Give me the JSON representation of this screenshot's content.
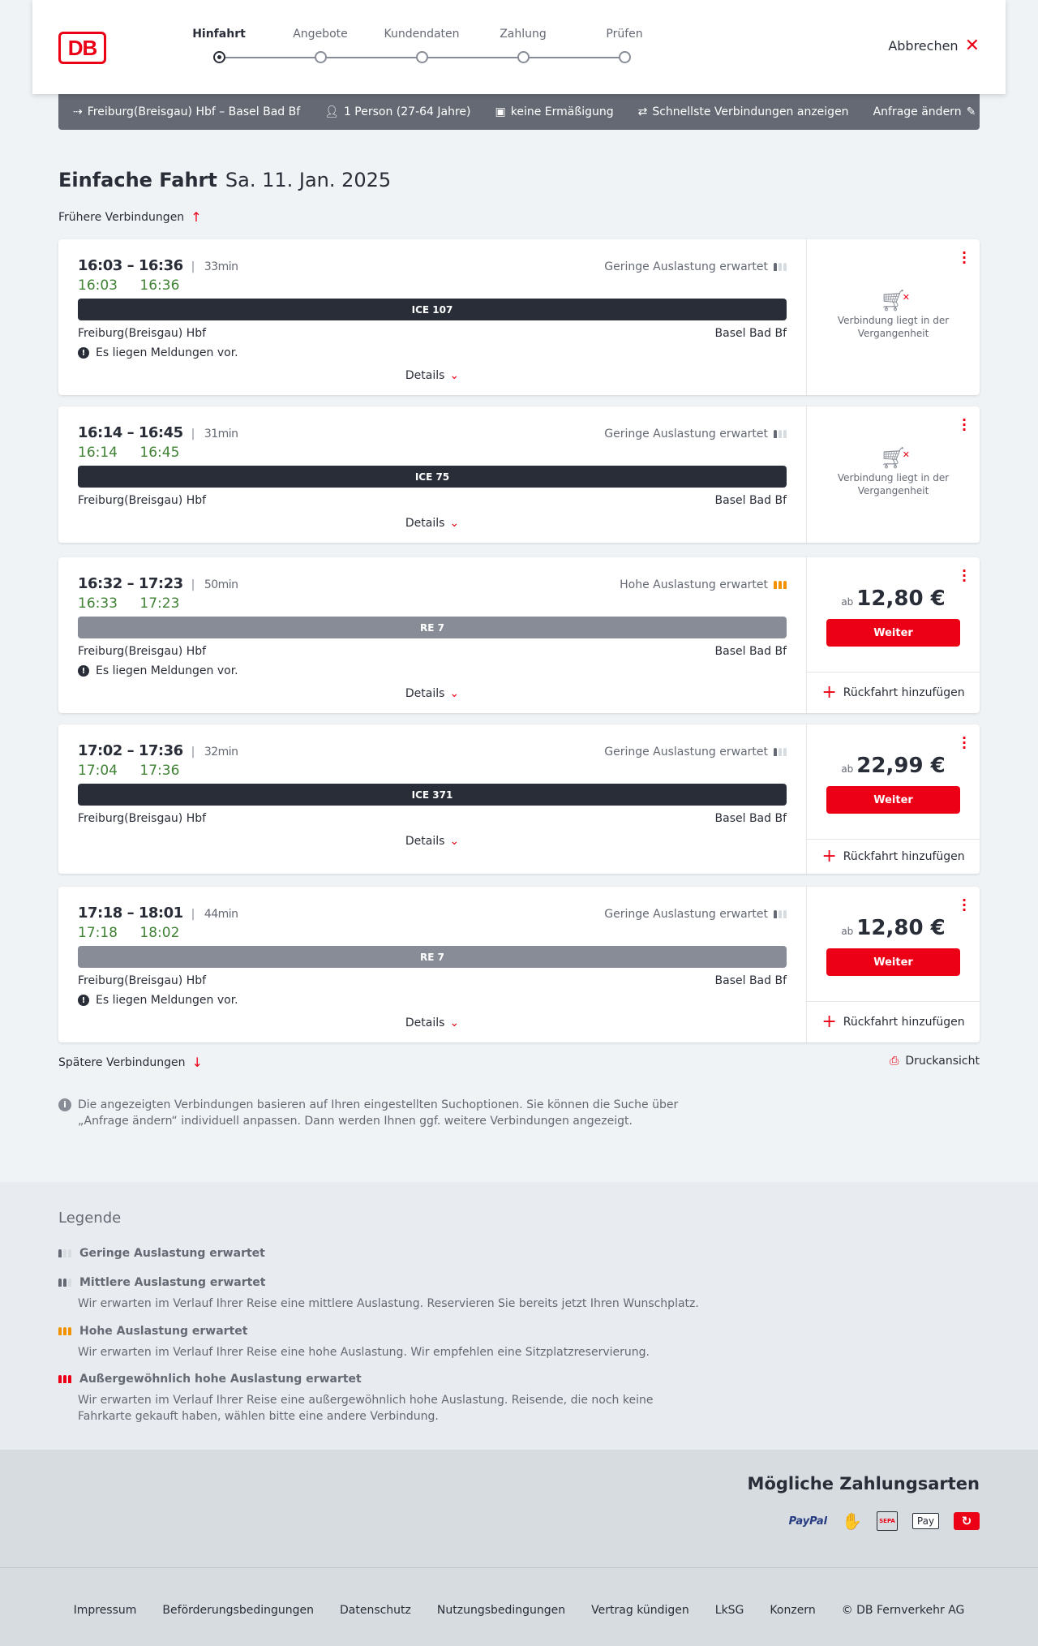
{
  "header": {
    "logo": "DB",
    "steps": [
      "Hinfahrt",
      "Angebote",
      "Kundendaten",
      "Zahlung",
      "Prüfen"
    ],
    "active_step": 0,
    "abort": "Abbrechen"
  },
  "query": {
    "route": "Freiburg(Breisgau) Hbf – Basel Bad Bf",
    "persons": "1 Person (27-64 Jahre)",
    "discount": "keine Ermäßigung",
    "fastest": "Schnellste Verbindungen anzeigen",
    "edit": "Anfrage ändern"
  },
  "page": {
    "title": "Einfache Fahrt",
    "date": "Sa. 11. Jan. 2025",
    "earlier": "Frühere Verbindungen",
    "later": "Spätere Verbindungen",
    "print": "Druckansicht",
    "info": "Die angezeigten Verbindungen basieren auf Ihren eingestellten Suchoptionen. Sie können die Suche über „Anfrage ändern“ individuell anpassen. Dann werden Ihnen ggf. weitere Verbindungen angezeigt.",
    "details": "Details",
    "past_text": "Verbindung liegt in der Vergangenheit",
    "ab": "ab",
    "weiter": "Weiter",
    "return": "Rückfahrt hinzufügen"
  },
  "colors": {
    "red": "#ec0016",
    "dark": "#282d37",
    "green": "#408335",
    "regional": "#878c96",
    "orange": "#f39200"
  },
  "connections": [
    {
      "times": "16:03 – 16:36",
      "duration": "33min",
      "occupancy": "Geringe Auslastung erwartet",
      "occ_level": 1,
      "real_dep": "16:03",
      "real_arr": "16:36",
      "train": "ICE 107",
      "train_type": "long",
      "from": "Freiburg(Breisgau) Hbf",
      "to": "Basel Bad Bf",
      "message": "Es liegen Meldungen vor.",
      "past": true
    },
    {
      "times": "16:14 – 16:45",
      "duration": "31min",
      "occupancy": "Geringe Auslastung erwartet",
      "occ_level": 1,
      "real_dep": "16:14",
      "real_arr": "16:45",
      "train": "ICE 75",
      "train_type": "long",
      "from": "Freiburg(Breisgau) Hbf",
      "to": "Basel Bad Bf",
      "message": null,
      "past": true
    },
    {
      "times": "16:32 – 17:23",
      "duration": "50min",
      "occupancy": "Hohe Auslastung erwartet",
      "occ_level": 3,
      "real_dep": "16:33",
      "real_arr": "17:23",
      "train": "RE 7",
      "train_type": "regional",
      "from": "Freiburg(Breisgau) Hbf",
      "to": "Basel Bad Bf",
      "message": "Es liegen Meldungen vor.",
      "past": false,
      "price": "12,80 €"
    },
    {
      "times": "17:02 – 17:36",
      "duration": "32min",
      "occupancy": "Geringe Auslastung erwartet",
      "occ_level": 1,
      "real_dep": "17:04",
      "real_arr": "17:36",
      "train": "ICE 371",
      "train_type": "long",
      "from": "Freiburg(Breisgau) Hbf",
      "to": "Basel Bad Bf",
      "message": null,
      "past": false,
      "price": "22,99 €"
    },
    {
      "times": "17:18 – 18:01",
      "duration": "44min",
      "occupancy": "Geringe Auslastung erwartet",
      "occ_level": 1,
      "real_dep": "17:18",
      "real_arr": "18:02",
      "train": "RE 7",
      "train_type": "regional",
      "from": "Freiburg(Breisgau) Hbf",
      "to": "Basel Bad Bf",
      "message": "Es liegen Meldungen vor.",
      "past": false,
      "price": "12,80 €"
    }
  ],
  "legend": {
    "title": "Legende",
    "items": [
      {
        "title": "Geringe Auslastung erwartet",
        "desc": "",
        "level": 1
      },
      {
        "title": "Mittlere Auslastung erwartet",
        "desc": "Wir erwarten im Verlauf Ihrer Reise eine mittlere Auslastung. Reservieren Sie bereits jetzt Ihren Wunschplatz.",
        "level": 2
      },
      {
        "title": "Hohe Auslastung erwartet",
        "desc": "Wir erwarten im Verlauf Ihrer Reise eine hohe Auslastung. Wir empfehlen eine Sitzplatzreservierung.",
        "level": 3
      },
      {
        "title": "Außergewöhnlich hohe Auslastung erwartet",
        "desc": "Wir erwarten im Verlauf Ihrer Reise eine außergewöhnlich hohe Auslastung. Reisende, die noch keine Fahrkarte gekauft haben, wählen bitte eine andere Verbindung.",
        "level": 4
      }
    ]
  },
  "payment": {
    "title": "Mögliche Zahlungsarten",
    "methods": [
      "PayPal",
      "Kreditkarte",
      "SEPA",
      "Pay",
      "Ratenzahlung"
    ]
  },
  "footer": {
    "links": [
      "Impressum",
      "Beförderungsbedingungen",
      "Datenschutz",
      "Nutzungsbedingungen",
      "Vertrag kündigen",
      "LkSG",
      "Konzern",
      "© DB Fernverkehr AG"
    ]
  }
}
